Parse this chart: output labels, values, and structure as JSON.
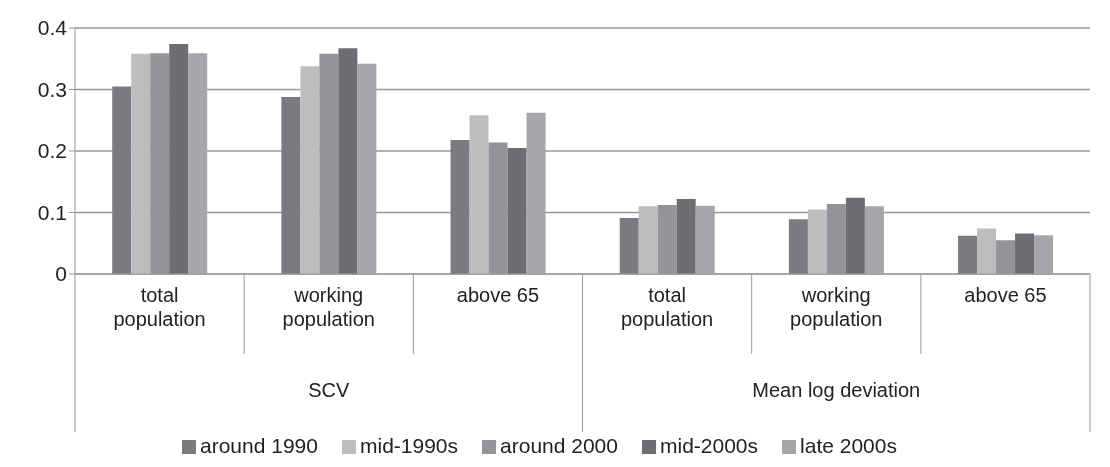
{
  "chart_data": {
    "type": "bar",
    "categories": [
      "total population",
      "working population",
      "above 65",
      "total population",
      "working population",
      "above 65"
    ],
    "annotations": [
      "SCV",
      "Mean log deviation"
    ],
    "series": [
      {
        "name": "around 1990",
        "color": "#7a7b7f",
        "values": [
          0.305,
          0.288,
          0.218,
          0.091,
          0.089,
          0.062
        ]
      },
      {
        "name": "mid-1990s",
        "color": "#bcbdbf",
        "values": [
          0.358,
          0.338,
          0.258,
          0.11,
          0.105,
          0.074
        ]
      },
      {
        "name": "around 2000",
        "color": "#939498",
        "values": [
          0.359,
          0.358,
          0.214,
          0.112,
          0.114,
          0.055
        ]
      },
      {
        "name": "mid-2000s",
        "color": "#6d6e72",
        "values": [
          0.374,
          0.367,
          0.205,
          0.122,
          0.124,
          0.066
        ]
      },
      {
        "name": "late 2000s",
        "color": "#a5a6aa",
        "values": [
          0.359,
          0.342,
          0.262,
          0.111,
          0.11,
          0.063
        ]
      }
    ],
    "ylim": [
      0,
      0.4
    ],
    "yticks": [
      0,
      0.1,
      0.2,
      0.3,
      0.4
    ],
    "grid": "y",
    "legend": "bottom"
  }
}
